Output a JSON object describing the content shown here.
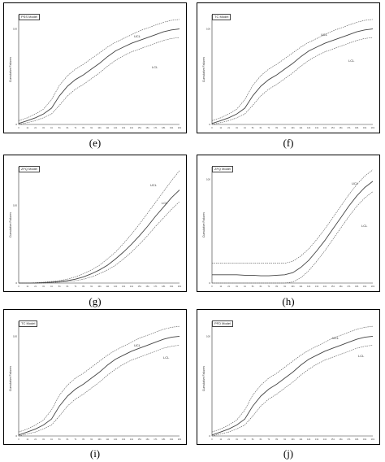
{
  "captions": [
    "(e)",
    "(f)",
    "(g)",
    "(h)",
    "(i)",
    "(j)"
  ],
  "chart_data": [
    {
      "type": "line",
      "panel": "e",
      "model_label": "PSS Model",
      "ylabel": "Cumulative Failures",
      "ytick_top": "100",
      "ytick_bottom": "0",
      "ucl_label": "UCL",
      "lcl_label": "LCL",
      "x": [
        0,
        11,
        21,
        31,
        41,
        51,
        61,
        71,
        81,
        91,
        101,
        111,
        121,
        131,
        141,
        151,
        161,
        171,
        181,
        191,
        201
      ],
      "series": [
        {
          "name": "UCL",
          "values": [
            4,
            7,
            11,
            16,
            26,
            41,
            51,
            58,
            63,
            69,
            75,
            81,
            86,
            90,
            94,
            98,
            101,
            104,
            107,
            109,
            110
          ]
        },
        {
          "name": "",
          "values": [
            1,
            4,
            7,
            11,
            17,
            30,
            40,
            47,
            52,
            58,
            64,
            71,
            77,
            81,
            85,
            88,
            91,
            94,
            97,
            99,
            100
          ]
        },
        {
          "name": "LCL",
          "values": [
            0,
            2,
            4,
            7,
            11,
            20,
            30,
            37,
            42,
            48,
            54,
            61,
            67,
            72,
            76,
            79,
            82,
            85,
            88,
            90,
            91
          ]
        }
      ]
    },
    {
      "type": "line",
      "panel": "f",
      "model_label": "TC Model",
      "ylabel": "Cumulative Failures",
      "ytick_top": "100",
      "ytick_bottom": "0",
      "ucl_label": "UCL",
      "lcl_label": "LCL",
      "x": [
        0,
        11,
        21,
        31,
        41,
        51,
        61,
        71,
        81,
        91,
        101,
        111,
        121,
        131,
        141,
        151,
        161,
        171,
        181,
        191,
        201
      ],
      "series": [
        {
          "name": "UCL",
          "values": [
            4,
            7,
            11,
            16,
            26,
            41,
            51,
            58,
            63,
            69,
            75,
            81,
            86,
            90,
            94,
            98,
            101,
            104,
            107,
            109,
            110
          ]
        },
        {
          "name": "",
          "values": [
            1,
            4,
            7,
            11,
            17,
            30,
            40,
            47,
            52,
            58,
            64,
            71,
            77,
            81,
            85,
            88,
            91,
            94,
            97,
            99,
            100
          ]
        },
        {
          "name": "LCL",
          "values": [
            0,
            2,
            4,
            7,
            11,
            20,
            30,
            37,
            42,
            48,
            54,
            61,
            67,
            72,
            76,
            79,
            82,
            85,
            88,
            90,
            91
          ]
        }
      ]
    },
    {
      "type": "line",
      "panel": "g",
      "model_label": "ZFQ Model",
      "ylabel": "Cumulative Failures",
      "ytick_top": "100",
      "ytick_bottom": "0",
      "ucl_label": "UCL",
      "lcl_label": "LCL",
      "x": [
        0,
        11,
        21,
        31,
        41,
        51,
        61,
        71,
        81,
        91,
        101,
        111,
        121,
        131,
        141,
        151,
        161,
        171,
        181,
        191,
        201
      ],
      "series": [
        {
          "name": "UCL",
          "values": [
            0,
            0,
            0.5,
            1,
            2,
            3,
            5,
            8,
            12,
            17,
            23,
            31,
            40,
            51,
            63,
            76,
            90,
            104,
            118,
            132,
            145
          ]
        },
        {
          "name": "",
          "values": [
            0,
            0,
            0,
            0.5,
            1,
            2,
            3,
            5,
            8,
            12,
            17,
            23,
            31,
            40,
            50,
            61,
            73,
            86,
            98,
            110,
            120
          ]
        },
        {
          "name": "LCL",
          "values": [
            0,
            0,
            0,
            0,
            0.5,
            1,
            2,
            3,
            5,
            8,
            12,
            17,
            23,
            31,
            40,
            50,
            61,
            73,
            84,
            95,
            105
          ]
        }
      ]
    },
    {
      "type": "line",
      "panel": "h",
      "model_label": "ZFQ Model",
      "ylabel": "Cumulative Failures",
      "ytick_top": "100",
      "ytick_bottom": "0",
      "ucl_label": "UCL",
      "lcl_label": "LCL",
      "x": [
        0,
        11,
        21,
        31,
        41,
        51,
        61,
        71,
        81,
        91,
        101,
        111,
        121,
        131,
        141,
        151,
        161,
        171,
        181,
        191,
        201
      ],
      "series": [
        {
          "name": "UCL",
          "values": [
            19,
            19,
            19,
            19,
            19,
            19,
            19,
            19,
            19,
            19,
            21,
            26,
            33,
            42,
            52,
            63,
            74,
            85,
            95,
            103,
            109
          ]
        },
        {
          "name": "",
          "values": [
            8,
            8,
            8,
            8,
            7.5,
            7.5,
            7,
            7,
            7.5,
            8,
            10,
            15,
            22,
            31,
            41,
            52,
            63,
            74,
            84,
            92,
            98
          ]
        },
        {
          "name": "LCL",
          "values": [
            0,
            0,
            0,
            0,
            0,
            0,
            0,
            0,
            0,
            0,
            1,
            5,
            12,
            21,
            31,
            42,
            53,
            64,
            74,
            82,
            88
          ]
        }
      ]
    },
    {
      "type": "line",
      "panel": "i",
      "model_label": "TC Model",
      "ylabel": "Cumulative Failures",
      "ytick_top": "100",
      "ytick_bottom": "0",
      "ucl_label": "UCL",
      "lcl_label": "LCL",
      "x": [
        0,
        11,
        21,
        31,
        41,
        51,
        61,
        71,
        81,
        91,
        101,
        111,
        121,
        131,
        141,
        151,
        161,
        171,
        181,
        191,
        201
      ],
      "series": [
        {
          "name": "UCL",
          "values": [
            4,
            7,
            11,
            16,
            26,
            41,
            51,
            58,
            63,
            69,
            75,
            81,
            86,
            90,
            94,
            98,
            101,
            104,
            107,
            109,
            110
          ]
        },
        {
          "name": "",
          "values": [
            1,
            4,
            7,
            11,
            17,
            30,
            40,
            47,
            52,
            58,
            64,
            71,
            77,
            81,
            85,
            88,
            91,
            94,
            97,
            99,
            100
          ]
        },
        {
          "name": "LCL",
          "values": [
            0,
            2,
            4,
            7,
            11,
            20,
            30,
            37,
            42,
            48,
            54,
            61,
            67,
            72,
            76,
            79,
            82,
            85,
            88,
            90,
            91
          ]
        }
      ]
    },
    {
      "type": "line",
      "panel": "j",
      "model_label": "PFD Model",
      "ylabel": "Cumulative Failures",
      "ytick_top": "100",
      "ytick_bottom": "0",
      "ucl_label": "UCL",
      "lcl_label": "LCL",
      "x": [
        0,
        11,
        21,
        31,
        41,
        51,
        61,
        71,
        81,
        91,
        101,
        111,
        121,
        131,
        141,
        151,
        161,
        171,
        181,
        191,
        201
      ],
      "series": [
        {
          "name": "UCL",
          "values": [
            4,
            7,
            11,
            16,
            26,
            41,
            51,
            58,
            63,
            69,
            75,
            81,
            86,
            90,
            94,
            98,
            101,
            104,
            107,
            109,
            110
          ]
        },
        {
          "name": "",
          "values": [
            1,
            4,
            7,
            11,
            17,
            30,
            40,
            47,
            52,
            58,
            64,
            71,
            77,
            81,
            85,
            88,
            91,
            94,
            97,
            99,
            100
          ]
        },
        {
          "name": "LCL",
          "values": [
            0,
            2,
            4,
            7,
            11,
            20,
            30,
            37,
            42,
            48,
            54,
            61,
            67,
            72,
            76,
            79,
            82,
            85,
            88,
            90,
            91
          ]
        }
      ]
    }
  ]
}
